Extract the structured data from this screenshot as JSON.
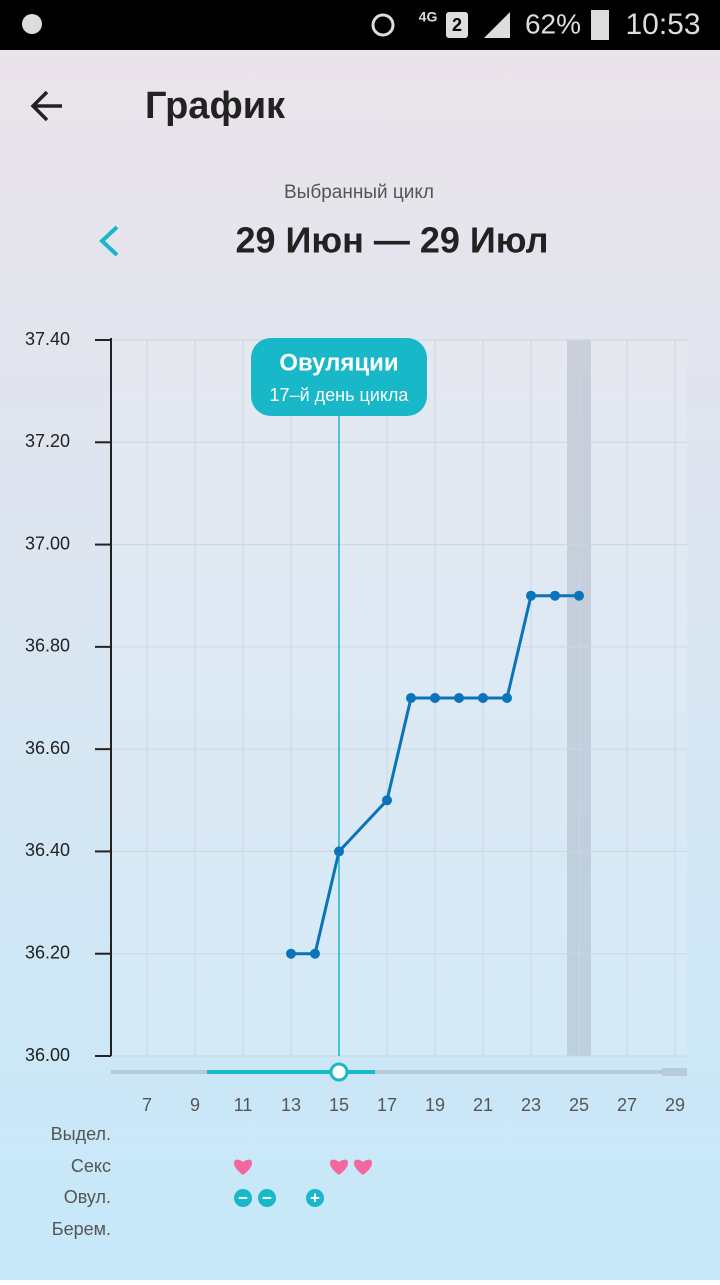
{
  "status_bar": {
    "network": "4G",
    "sim": "2",
    "battery": "62%",
    "time": "10:53"
  },
  "header": {
    "title": "График"
  },
  "cycle": {
    "label": "Выбранный цикл",
    "range": "29 Июн — 29 Июл"
  },
  "chart_data": {
    "type": "line",
    "x": [
      13,
      14,
      15,
      17,
      18,
      19,
      20,
      21,
      22,
      23,
      24,
      25
    ],
    "values": [
      36.2,
      36.2,
      36.4,
      36.5,
      36.7,
      36.7,
      36.7,
      36.7,
      36.7,
      36.9,
      36.9,
      36.9
    ],
    "color": "#0b73b9",
    "xlim": [
      5.5,
      29.5
    ],
    "xticks": [
      7,
      9,
      11,
      13,
      15,
      17,
      19,
      21,
      23,
      25,
      27,
      29
    ],
    "ylim": [
      36,
      37.4
    ],
    "yticks": [
      {
        "value": 36,
        "label": "36.00"
      },
      {
        "value": 36.2,
        "label": "36.20"
      },
      {
        "value": 36.4,
        "label": "36.40"
      },
      {
        "value": 36.6,
        "label": "36.60"
      },
      {
        "value": 36.8,
        "label": "36.80"
      },
      {
        "value": 37,
        "label": "37.00"
      },
      {
        "value": 37.2,
        "label": "37.20"
      },
      {
        "value": 37.4,
        "label": "37.40"
      }
    ],
    "grid": true,
    "highlight_day": 25,
    "annotation": {
      "title": "Овуляции",
      "subtitle": "17–й день цикла",
      "x": 15,
      "color": "#19b8c9"
    },
    "slider_range": [
      9.5,
      16.5
    ]
  },
  "rows": {
    "labels": [
      "Выдел.",
      "Секс",
      "Овул.",
      "Берем."
    ],
    "sex_days": [
      11,
      15,
      16
    ],
    "sex_color": "#f2679e",
    "ovulation_tests": [
      {
        "day": 11,
        "symbol": "−"
      },
      {
        "day": 12,
        "symbol": "−"
      },
      {
        "day": 14,
        "symbol": "+"
      }
    ]
  }
}
